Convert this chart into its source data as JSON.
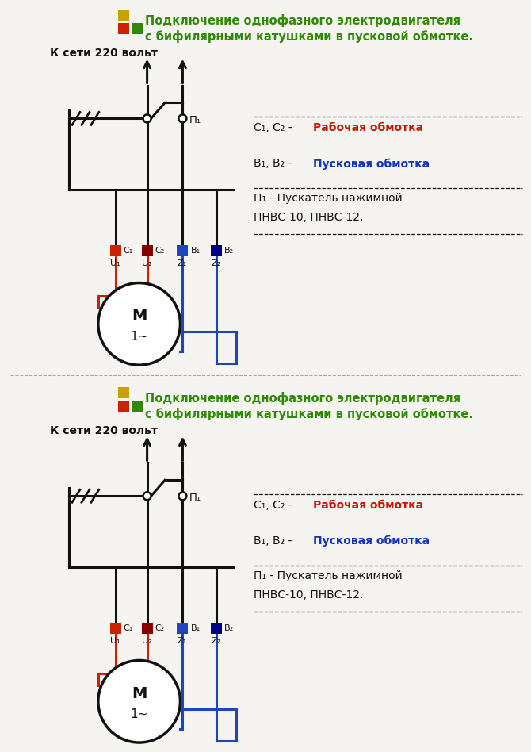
{
  "bg": "#f5f4f0",
  "title_green": "#2e8a00",
  "icon_yellow": "#c8a200",
  "icon_red": "#cc2200",
  "icon_green": "#2e8a00",
  "blk": "#111111",
  "red": "#cc2200",
  "blu": "#2244bb",
  "network_text": "К сети 220 вольт",
  "title1": "Подключение однофазного электродвигателя",
  "title2": "с бифилярными катушками в пусковой обмотке.",
  "leg1a": "С₁, С₂ - ",
  "leg1b": "Рабочая обмотка",
  "leg1b_col": "#cc1100",
  "leg2a": "В₁, В₂ - ",
  "leg2b": "Пусковая обмотка",
  "leg2b_col": "#1133bb",
  "leg3a": "П₁ - Пускатель нажимной",
  "leg3b": "ПНВС-10, ПНВС-12.",
  "p1": "П₁",
  "tlab": [
    "С₁",
    "С₂",
    "В₁",
    "В₂"
  ],
  "wlab": [
    "U₁",
    "U₂",
    "Z₁",
    "Z₂"
  ],
  "tcol": [
    "#cc2200",
    "#880000",
    "#2244bb",
    "#000088"
  ],
  "mtext": "М",
  "msub": "1~",
  "sep_color": "#aaaaaa"
}
